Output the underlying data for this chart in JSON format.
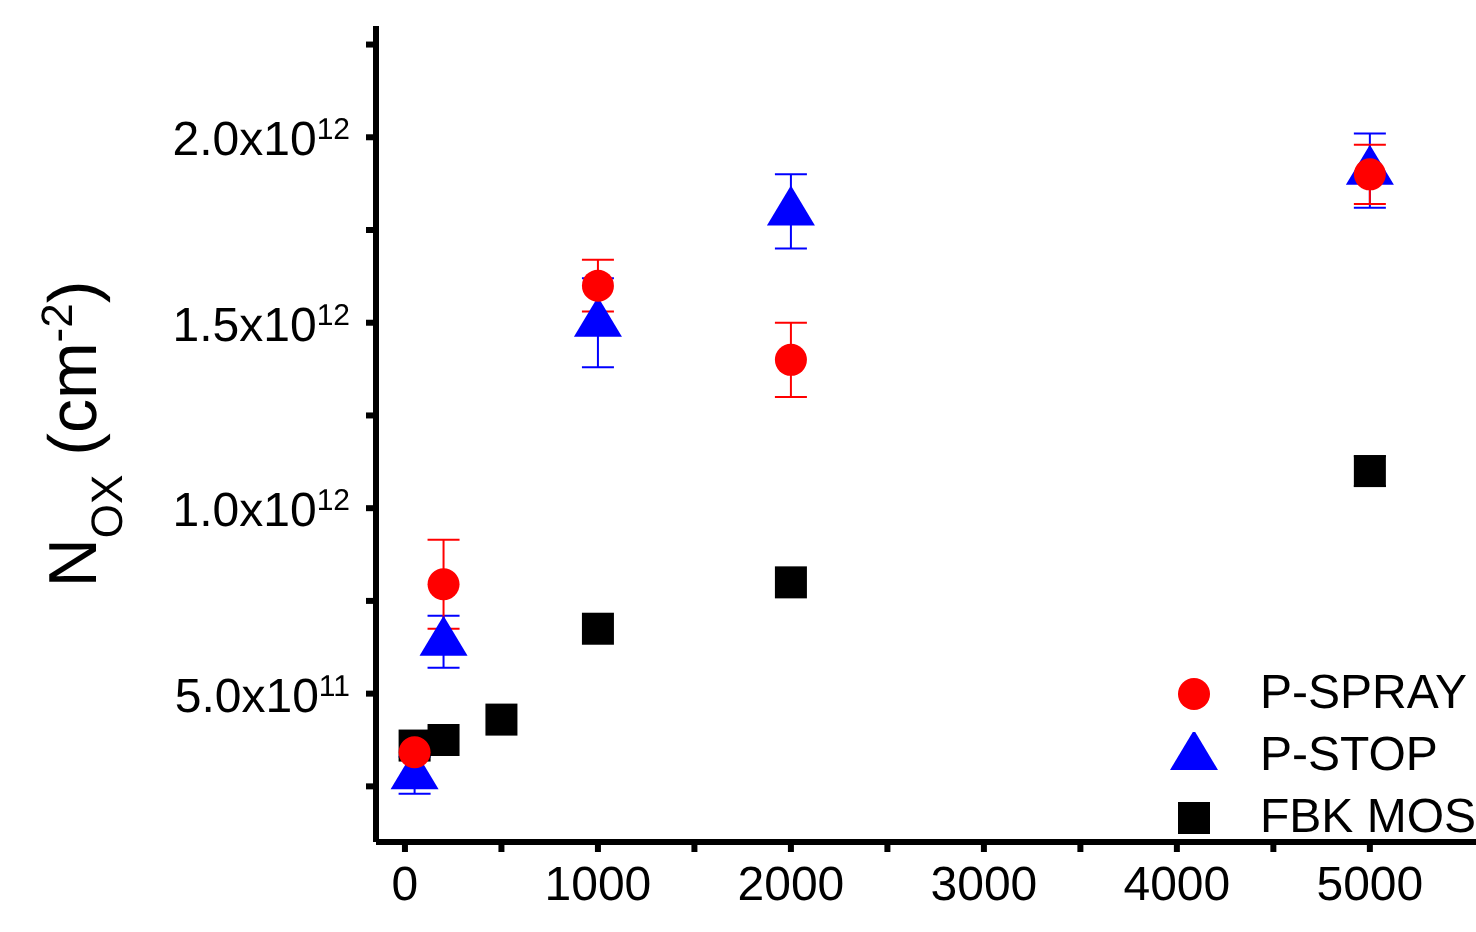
{
  "chart_data": {
    "type": "scatter",
    "ylabel": "N$_{OX}$ (cm$^{-2}$)",
    "xlim": [
      -150,
      5550
    ],
    "ylim": [
      100000000000,
      2300000000000
    ],
    "xticks": [
      0,
      {
        "value": 500,
        "label": null
      },
      1000,
      {
        "value": 1500,
        "label": null
      },
      2000,
      {
        "value": 2500,
        "label": null
      },
      3000,
      {
        "value": 3500,
        "label": null
      },
      4000,
      {
        "value": 4500,
        "label": null
      },
      5000
    ],
    "yticks": [
      {
        "value": 250000000000,
        "label": null
      },
      {
        "value": 500000000000,
        "label": "5.0x10$^{11}$"
      },
      {
        "value": 750000000000,
        "label": null
      },
      {
        "value": 1000000000000,
        "label": "1.0x10$^{12}$"
      },
      {
        "value": 1250000000000,
        "label": null
      },
      {
        "value": 1500000000000,
        "label": "1.5x10$^{12}$"
      },
      {
        "value": 1750000000000,
        "label": null
      },
      {
        "value": 2000000000000,
        "label": "2.0x10$^{12}$"
      },
      {
        "value": 2250000000000,
        "label": null
      }
    ],
    "series": [
      {
        "name": "P-SPRAY",
        "color": "#ff0000",
        "marker": "circle",
        "x": [
          50,
          200,
          1000,
          2000,
          5000
        ],
        "values": [
          342000000000,
          795000000000,
          1600000000000,
          1400000000000,
          1900000000000
        ],
        "errors": [
          null,
          120000000000,
          70000000000,
          100000000000,
          80000000000
        ]
      },
      {
        "name": "P-STOP",
        "color": "#0000ff",
        "marker": "triangle",
        "x": [
          50,
          200,
          1000,
          2000,
          5000
        ],
        "values": [
          280000000000,
          640000000000,
          1500000000000,
          1800000000000,
          1910000000000
        ],
        "errors": [
          50000000000,
          70000000000,
          120000000000,
          100000000000,
          100000000000
        ]
      },
      {
        "name": "FBK MOS",
        "color": "#000000",
        "marker": "square",
        "x": [
          50,
          200,
          500,
          1000,
          2000,
          5000
        ],
        "values": [
          360000000000,
          375000000000,
          430000000000,
          675000000000,
          800000000000,
          1100000000000
        ],
        "errors": [
          null,
          null,
          null,
          null,
          null,
          40000000000
        ]
      }
    ],
    "grid": false,
    "legend": "bottom right"
  }
}
